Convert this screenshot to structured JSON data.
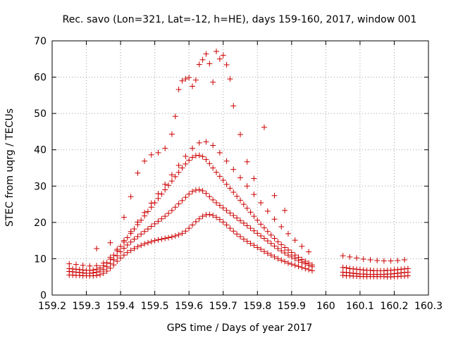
{
  "chart_data": {
    "type": "scatter",
    "title": "Rec. savo (Lon=321, Lat=-12, h=HE), days 159-160, 2017, window 001",
    "xlabel": "GPS time / Days of year 2017",
    "ylabel": "STEC from uqrg / TECUs",
    "xlim": [
      159.2,
      160.3
    ],
    "ylim": [
      0,
      70
    ],
    "xticks": [
      "159.2",
      "159.3",
      "159.4",
      "159.5",
      "159.6",
      "159.7",
      "159.8",
      "159.9",
      "160",
      "160.1",
      "160.2",
      "160.3"
    ],
    "yticks": [
      "0",
      "10",
      "20",
      "30",
      "40",
      "50",
      "60",
      "70"
    ],
    "grid": true,
    "marker": "plus",
    "color": "#cc0000",
    "series": [
      {
        "x": [
          159.25,
          159.26,
          159.27,
          159.28,
          159.29,
          159.3,
          159.31,
          159.32,
          159.33,
          159.34,
          159.35,
          159.36,
          159.37,
          159.38,
          159.39,
          159.4,
          159.41,
          159.42,
          159.43,
          159.44,
          159.45,
          159.46,
          159.47,
          159.48,
          159.49,
          159.5,
          159.51,
          159.52,
          159.53,
          159.54,
          159.55,
          159.56,
          159.57,
          159.58,
          159.59,
          159.6,
          159.61,
          159.62,
          159.63,
          159.64,
          159.65,
          159.66,
          159.67,
          159.68,
          159.69,
          159.7,
          159.71,
          159.72,
          159.73,
          159.74,
          159.75,
          159.76,
          159.77,
          159.78,
          159.79,
          159.8,
          159.81,
          159.82,
          159.83,
          159.84,
          159.85,
          159.86,
          159.87,
          159.88,
          159.89,
          159.9,
          159.91,
          159.92,
          159.93,
          159.94,
          159.95,
          159.96,
          160.05,
          160.06,
          160.07,
          160.08,
          160.09,
          160.1,
          160.11,
          160.12,
          160.13,
          160.14,
          160.15,
          160.16,
          160.17,
          160.18,
          160.19,
          160.2,
          160.21,
          160.22,
          160.23,
          160.24
        ],
        "y": [
          5.5,
          5.5,
          5.4,
          5.4,
          5.3,
          5.3,
          5.3,
          5.3,
          5.4,
          5.6,
          6.0,
          6.6,
          7.4,
          8.3,
          9.3,
          10.2,
          11.0,
          11.7,
          12.3,
          12.8,
          13.3,
          13.7,
          14.1,
          14.4,
          14.7,
          15.0,
          15.2,
          15.4,
          15.6,
          15.8,
          16.0,
          16.3,
          16.6,
          17.0,
          17.6,
          18.4,
          19.3,
          20.2,
          21.0,
          21.7,
          22.1,
          22.2,
          21.9,
          21.4,
          20.8,
          20.1,
          19.3,
          18.4,
          17.6,
          16.8,
          16.1,
          15.4,
          14.8,
          14.2,
          13.7,
          13.1,
          12.6,
          12.0,
          11.5,
          11.0,
          10.5,
          10.0,
          9.6,
          9.2,
          8.8,
          8.5,
          8.2,
          7.9,
          7.6,
          7.3,
          7.0,
          6.7,
          5.4,
          5.3,
          5.3,
          5.2,
          5.2,
          5.1,
          5.1,
          5.1,
          5.1,
          5.1,
          5.1,
          5.1,
          5.1,
          5.0,
          5.0,
          5.1,
          5.1,
          5.2,
          5.2,
          5.3
        ]
      },
      {
        "x": [
          159.25,
          159.26,
          159.27,
          159.28,
          159.29,
          159.3,
          159.31,
          159.32,
          159.33,
          159.34,
          159.35,
          159.36,
          159.37,
          159.38,
          159.39,
          159.4,
          159.41,
          159.42,
          159.43,
          159.44,
          159.45,
          159.46,
          159.47,
          159.48,
          159.49,
          159.5,
          159.51,
          159.52,
          159.53,
          159.54,
          159.55,
          159.56,
          159.57,
          159.58,
          159.59,
          159.6,
          159.61,
          159.62,
          159.63,
          159.64,
          159.65,
          159.66,
          159.67,
          159.68,
          159.69,
          159.7,
          159.71,
          159.72,
          159.73,
          159.74,
          159.75,
          159.76,
          159.77,
          159.78,
          159.79,
          159.8,
          159.81,
          159.82,
          159.83,
          159.84,
          159.85,
          159.86,
          159.87,
          159.88,
          159.89,
          159.9,
          159.91,
          159.92,
          159.93,
          159.94,
          159.95,
          159.96,
          160.05,
          160.06,
          160.07,
          160.08,
          160.09,
          160.1,
          160.11,
          160.12,
          160.13,
          160.14,
          160.15,
          160.16,
          160.17,
          160.18,
          160.19,
          160.2,
          160.21,
          160.22,
          160.23,
          160.24
        ],
        "y": [
          6.5,
          6.4,
          6.3,
          6.2,
          6.1,
          6.0,
          6.0,
          6.1,
          6.3,
          6.6,
          7.1,
          7.8,
          8.7,
          9.7,
          10.8,
          11.9,
          12.9,
          13.8,
          14.6,
          15.4,
          16.1,
          16.8,
          17.5,
          18.2,
          18.9,
          19.6,
          20.3,
          21.0,
          21.7,
          22.5,
          23.3,
          24.2,
          25.1,
          26.0,
          26.9,
          27.8,
          28.5,
          28.9,
          29.0,
          28.7,
          28.0,
          27.1,
          26.2,
          25.4,
          24.7,
          24.0,
          23.3,
          22.6,
          21.9,
          21.2,
          20.5,
          19.8,
          19.1,
          18.4,
          17.7,
          17.0,
          16.3,
          15.6,
          14.9,
          14.2,
          13.5,
          12.8,
          12.2,
          11.6,
          11.0,
          10.5,
          10.0,
          9.5,
          9.0,
          8.6,
          8.2,
          7.8,
          6.3,
          6.2,
          6.1,
          6.0,
          5.9,
          5.8,
          5.8,
          5.7,
          5.7,
          5.7,
          5.7,
          5.7,
          5.7,
          5.8,
          5.8,
          5.9,
          6.0,
          6.1,
          6.2,
          6.3
        ]
      },
      {
        "x": [
          159.25,
          159.26,
          159.27,
          159.28,
          159.29,
          159.3,
          159.31,
          159.32,
          159.33,
          159.34,
          159.35,
          159.36,
          159.37,
          159.38,
          159.39,
          159.4,
          159.41,
          159.42,
          159.43,
          159.44,
          159.45,
          159.46,
          159.47,
          159.48,
          159.49,
          159.5,
          159.51,
          159.52,
          159.53,
          159.54,
          159.55,
          159.56,
          159.57,
          159.58,
          159.59,
          159.6,
          159.61,
          159.62,
          159.63,
          159.64,
          159.65,
          159.66,
          159.67,
          159.68,
          159.69,
          159.7,
          159.71,
          159.72,
          159.73,
          159.74,
          159.75,
          159.76,
          159.77,
          159.78,
          159.79,
          159.8,
          159.81,
          159.82,
          159.83,
          159.84,
          159.85,
          159.86,
          159.87,
          159.88,
          159.89,
          159.9,
          159.91,
          159.92,
          159.93,
          159.94,
          159.95,
          159.96,
          160.05,
          160.06,
          160.07,
          160.08,
          160.09,
          160.1,
          160.11,
          160.12,
          160.13,
          160.14,
          160.15,
          160.16,
          160.17,
          160.18,
          160.19,
          160.2,
          160.21,
          160.22,
          160.23,
          160.24
        ],
        "y": [
          7.3,
          7.2,
          7.1,
          7.0,
          6.9,
          6.8,
          6.8,
          6.9,
          7.1,
          7.5,
          8.1,
          8.9,
          9.9,
          11.0,
          12.2,
          13.4,
          14.6,
          15.8,
          17.0,
          18.2,
          19.4,
          20.6,
          21.8,
          23.0,
          24.2,
          25.4,
          26.6,
          27.8,
          29.0,
          30.2,
          31.4,
          32.6,
          33.8,
          35.0,
          36.1,
          37.1,
          37.9,
          38.4,
          38.5,
          38.1,
          37.3,
          36.2,
          35.0,
          33.8,
          32.7,
          31.6,
          30.5,
          29.4,
          28.3,
          27.2,
          26.1,
          25.0,
          23.9,
          22.8,
          21.7,
          20.6,
          19.5,
          18.5,
          17.5,
          16.5,
          15.6,
          14.7,
          13.9,
          13.1,
          12.4,
          11.7,
          11.0,
          10.4,
          9.8,
          9.3,
          8.8,
          8.3,
          7.6,
          7.5,
          7.3,
          7.2,
          7.1,
          7.0,
          6.9,
          6.8,
          6.8,
          6.7,
          6.7,
          6.7,
          6.7,
          6.8,
          6.8,
          6.9,
          7.0,
          7.1,
          7.2,
          7.3
        ]
      },
      {
        "x": [
          159.25,
          159.27,
          159.29,
          159.31,
          159.33,
          159.35,
          159.37,
          159.39,
          159.41,
          159.43,
          159.45,
          159.47,
          159.49,
          159.51,
          159.53,
          159.55,
          159.57,
          159.59,
          159.61,
          159.63,
          159.65,
          159.67,
          159.69,
          159.71,
          159.73,
          159.75,
          159.77,
          159.79,
          159.81,
          159.83,
          159.85,
          159.87,
          159.89,
          159.91,
          159.93,
          159.95,
          160.05,
          160.07,
          160.09,
          160.11,
          160.13,
          160.15,
          160.17,
          160.19,
          160.21,
          160.23
        ],
        "y": [
          8.6,
          8.4,
          8.2,
          8.0,
          8.1,
          8.8,
          10.4,
          12.6,
          15.0,
          17.5,
          20.1,
          22.7,
          25.3,
          27.9,
          30.5,
          33.1,
          35.7,
          38.2,
          40.4,
          41.9,
          42.2,
          41.2,
          39.2,
          36.9,
          34.6,
          32.3,
          30.0,
          27.7,
          25.4,
          23.1,
          20.9,
          18.8,
          16.9,
          15.1,
          13.4,
          11.9,
          10.8,
          10.5,
          10.2,
          9.9,
          9.7,
          9.5,
          9.4,
          9.4,
          9.5,
          9.7
        ]
      },
      {
        "x": [
          159.33,
          159.37,
          159.41,
          159.43,
          159.45,
          159.47,
          159.49,
          159.51,
          159.53,
          159.55,
          159.56,
          159.57,
          159.58,
          159.59,
          159.6,
          159.61,
          159.62,
          159.63,
          159.64,
          159.65,
          159.66,
          159.67,
          159.68,
          159.69,
          159.7,
          159.71,
          159.72,
          159.73,
          159.75,
          159.77,
          159.79,
          159.82,
          159.85,
          159.88
        ],
        "y": [
          12.8,
          14.4,
          21.4,
          27.1,
          33.6,
          36.9,
          38.6,
          39.2,
          40.4,
          44.3,
          49.2,
          56.6,
          59.0,
          59.5,
          59.9,
          57.5,
          59.2,
          63.5,
          64.8,
          66.4,
          63.7,
          58.6,
          67.1,
          65.0,
          66.0,
          63.4,
          59.5,
          52.1,
          44.2,
          36.7,
          32.1,
          46.2,
          27.4,
          23.3
        ]
      }
    ]
  }
}
